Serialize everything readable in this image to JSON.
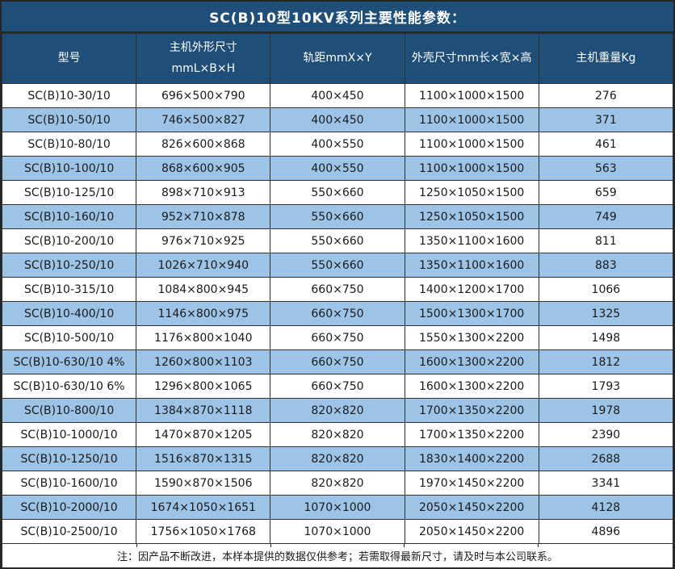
{
  "title": "SC(B)10型10KV系列主要性能参数：",
  "table": {
    "headers": [
      {
        "lines": [
          "型号"
        ]
      },
      {
        "lines": [
          "主机外形尺寸",
          "mmL×B×H"
        ]
      },
      {
        "lines": [
          "轨距mmX×Y"
        ]
      },
      {
        "lines": [
          "外壳尺寸mm长×宽×高"
        ]
      },
      {
        "lines": [
          "主机重量Kg"
        ]
      }
    ],
    "rows": [
      [
        "SC(B)10-30/10",
        "696×500×790",
        "400×450",
        "1100×1000×1500",
        "276"
      ],
      [
        "SC(B)10-50/10",
        "746×500×827",
        "400×450",
        "1100×1000×1500",
        "371"
      ],
      [
        "SC(B)10-80/10",
        "826×600×868",
        "400×550",
        "1100×1000×1500",
        "461"
      ],
      [
        "SC(B)10-100/10",
        "868×600×905",
        "400×550",
        "1100×1000×1500",
        "563"
      ],
      [
        "SC(B)10-125/10",
        "898×710×913",
        "550×660",
        "1250×1050×1500",
        "659"
      ],
      [
        "SC(B)10-160/10",
        "952×710×878",
        "550×660",
        "1250×1050×1500",
        "749"
      ],
      [
        "SC(B)10-200/10",
        "976×710×925",
        "550×660",
        "1350×1100×1600",
        "811"
      ],
      [
        "SC(B)10-250/10",
        "1026×710×940",
        "550×660",
        "1350×1100×1600",
        "883"
      ],
      [
        "SC(B)10-315/10",
        "1084×800×945",
        "660×750",
        "1400×1200×1700",
        "1066"
      ],
      [
        "SC(B)10-400/10",
        "1146×800×975",
        "660×750",
        "1500×1300×1700",
        "1325"
      ],
      [
        "SC(B)10-500/10",
        "1176×800×1040",
        "660×750",
        "1550×1300×2200",
        "1498"
      ],
      [
        "SC(B)10-630/10 4%",
        "1260×800×1103",
        "660×750",
        "1600×1300×2200",
        "1812"
      ],
      [
        "SC(B)10-630/10 6%",
        "1296×800×1065",
        "660×750",
        "1600×1300×2200",
        "1793"
      ],
      [
        "SC(B)10-800/10",
        "1384×870×1118",
        "820×820",
        "1700×1350×2200",
        "1978"
      ],
      [
        "SC(B)10-1000/10",
        "1470×870×1205",
        "820×820",
        "1700×1350×2200",
        "2390"
      ],
      [
        "SC(B)10-1250/10",
        "1516×870×1315",
        "820×820",
        "1830×1400×2200",
        "2688"
      ],
      [
        "SC(B)10-1600/10",
        "1590×870×1506",
        "820×820",
        "1970×1450×2200",
        "3341"
      ],
      [
        "SC(B)10-2000/10",
        "1674×1050×1651",
        "1070×1000",
        "2050×1450×2200",
        "4128"
      ],
      [
        "SC(B)10-2500/10",
        "1756×1050×1768",
        "1070×1000",
        "2050×1450×2200",
        "4896"
      ]
    ]
  },
  "note": "注：因产品不断改进，本样本提供的数据仅供参考；若需取得最新尺寸，请及时与本公司联系。",
  "colors": {
    "header_bg": "#1F4E79",
    "stripe_bg": "#9DC3E6",
    "row_bg": "#FFFFFF",
    "border": "#2F2F2F",
    "header_text": "#FFFFFF",
    "body_text": "#1A1A1A"
  }
}
